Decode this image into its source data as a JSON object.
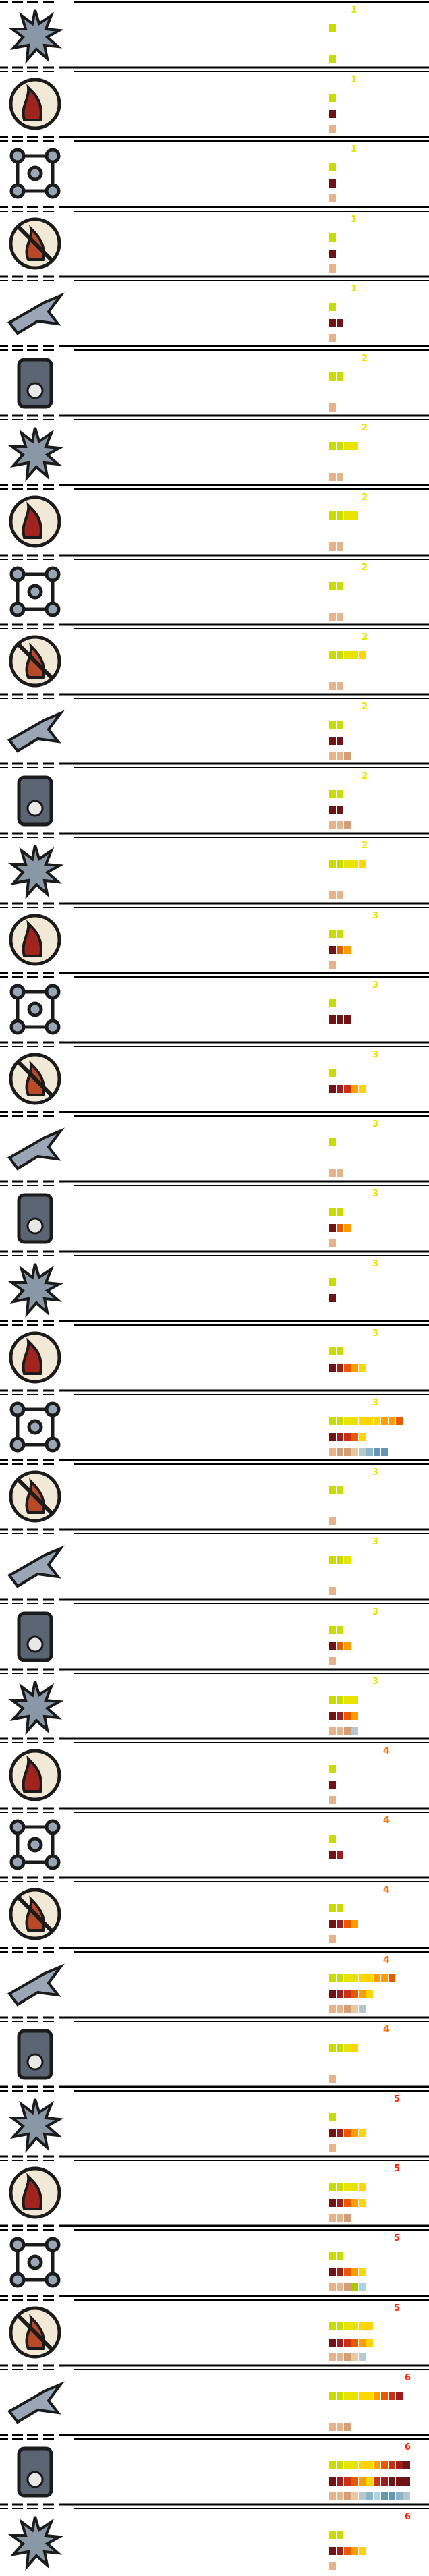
{
  "colors": {
    "line": "#000000",
    "level": {
      "1": "#e6e600",
      "2": "#e6e600",
      "3": "#e6e600",
      "4": "#ff6a00",
      "5": "#ff2200",
      "6": "#ff2200"
    },
    "palette": [
      "#a8c800",
      "#c8dc00",
      "#e8e400",
      "#ffd400",
      "#ff9c00",
      "#e85a00",
      "#c83214",
      "#9c1e1e",
      "#6e1414",
      "#e6b48c",
      "#d2a078",
      "#e8c8a0",
      "#b4c8d2",
      "#8cb4c8",
      "#6496b4",
      "#a8d4e8"
    ]
  },
  "rows": [
    {
      "name": "snowflake",
      "level": "1",
      "bars": [
        [
          0,
          0.5,
          0,
          0
        ]
      ],
      "r1": [
        1
      ],
      "r2": [],
      "r3": [
        1
      ]
    },
    {
      "name": "fire-hand",
      "level": "1",
      "r1": [
        1
      ],
      "r2": [
        8
      ],
      "r3": [
        9
      ]
    },
    {
      "name": "molecule",
      "level": "1",
      "r1": [
        1
      ],
      "r2": [
        8
      ],
      "r3": [
        9
      ]
    },
    {
      "name": "no-fire",
      "level": "1",
      "r1": [
        1
      ],
      "r2": [
        8
      ],
      "r3": [
        9
      ]
    },
    {
      "name": "swallow",
      "level": "1",
      "r1": [
        1
      ],
      "r2": [
        8,
        8
      ],
      "r3": [
        9
      ]
    },
    {
      "name": "skull-jar",
      "level": "2",
      "r1": [
        1,
        1
      ],
      "r2": [],
      "r3": [
        9
      ]
    },
    {
      "name": "wave-blue",
      "level": "2",
      "r1": [
        1,
        1,
        2,
        2
      ],
      "r2": [],
      "r3": [
        9,
        9
      ]
    },
    {
      "name": "wave-battery",
      "level": "2",
      "r1": [
        1,
        1,
        2,
        2
      ],
      "r2": [],
      "r3": [
        9,
        9
      ]
    },
    {
      "name": "wave-moon",
      "level": "2",
      "r1": [
        1,
        1
      ],
      "r2": [],
      "r3": [
        9,
        9
      ]
    },
    {
      "name": "wave-green",
      "level": "2",
      "r1": [
        1,
        1,
        2,
        2,
        3
      ],
      "r2": [],
      "r3": [
        9,
        9
      ]
    },
    {
      "name": "shield-cross",
      "level": "2",
      "r1": [
        1,
        1
      ],
      "r2": [
        8,
        8
      ],
      "r3": [
        9,
        9,
        10
      ]
    },
    {
      "name": "medic-circle",
      "level": "2",
      "r1": [
        1,
        1
      ],
      "r2": [
        8,
        8
      ],
      "r3": [
        9,
        9,
        10
      ]
    },
    {
      "name": "wave-heart",
      "level": "2",
      "r1": [
        1,
        1,
        2,
        2,
        3
      ],
      "r2": [],
      "r3": [
        9,
        9
      ]
    },
    {
      "name": "wolf-tag",
      "level": "3",
      "r1": [
        1,
        1
      ],
      "r2": [
        8,
        5,
        4
      ],
      "r3": [
        9
      ]
    },
    {
      "name": "weights",
      "level": "3",
      "r1": [
        1
      ],
      "r2": [
        8,
        8,
        8
      ],
      "r3": []
    },
    {
      "name": "stone-face",
      "level": "3",
      "r1": [
        1
      ],
      "r2": [
        8,
        7,
        6,
        4,
        3
      ],
      "r3": []
    },
    {
      "name": "broom",
      "level": "3",
      "r1": [
        1
      ],
      "r2": [],
      "r3": [
        9,
        9
      ]
    },
    {
      "name": "heat-waves",
      "level": "3",
      "r1": [
        1,
        1
      ],
      "r2": [
        8,
        5,
        4
      ],
      "r3": [
        9
      ]
    },
    {
      "name": "runner",
      "level": "3",
      "r1": [
        1
      ],
      "r2": [
        8
      ],
      "r3": []
    },
    {
      "name": "explosion",
      "level": "3",
      "r1": [
        1,
        1
      ],
      "r2": [
        8,
        7,
        5,
        4,
        3
      ],
      "r3": []
    },
    {
      "name": "dodge",
      "level": "3",
      "r1": [
        1,
        1,
        2,
        2,
        3,
        3,
        3,
        4,
        4,
        5
      ],
      "r2": [
        8,
        7,
        6,
        5,
        3
      ],
      "r3": [
        9,
        10,
        10,
        11,
        12,
        13,
        14,
        14
      ]
    },
    {
      "name": "vortex",
      "level": "3",
      "r1": [
        1,
        1
      ],
      "r2": [],
      "r3": [
        9
      ]
    },
    {
      "name": "fan",
      "level": "3",
      "r1": [
        1,
        1,
        2
      ],
      "r2": [],
      "r3": [
        9
      ]
    },
    {
      "name": "medic-dial",
      "level": "3",
      "r1": [
        1,
        1
      ],
      "r2": [
        8,
        5,
        4
      ],
      "r3": [
        9
      ]
    },
    {
      "name": "electric-hand",
      "level": "3",
      "r1": [
        1,
        1,
        2,
        2
      ],
      "r2": [
        8,
        7,
        5,
        4
      ],
      "r3": [
        9,
        9,
        10,
        12
      ]
    },
    {
      "name": "cog",
      "level": "4",
      "r1": [
        1
      ],
      "r2": [
        8
      ],
      "r3": [
        9
      ]
    },
    {
      "name": "spider",
      "level": "4",
      "r1": [
        1
      ],
      "r2": [
        8,
        7
      ],
      "r3": []
    },
    {
      "name": "umbrella",
      "level": "4",
      "r1": [
        1,
        1
      ],
      "r2": [
        8,
        7,
        5,
        4
      ],
      "r3": [
        9
      ]
    },
    {
      "name": "walker",
      "level": "4",
      "r1": [
        1,
        1,
        2,
        2,
        3,
        3,
        4,
        4,
        5
      ],
      "r2": [
        8,
        7,
        6,
        5,
        4,
        3
      ],
      "r3": [
        9,
        9,
        10,
        11,
        12
      ]
    },
    {
      "name": "shark",
      "level": "4",
      "r1": [
        1,
        1,
        2,
        3
      ],
      "r2": [],
      "r3": [
        9
      ]
    },
    {
      "name": "camo",
      "level": "5",
      "r1": [
        1
      ],
      "r2": [
        8,
        7,
        5,
        4,
        3
      ],
      "r3": [
        9
      ]
    },
    {
      "name": "fire-soldier",
      "level": "5",
      "r1": [
        1,
        1,
        2,
        2,
        3
      ],
      "r2": [
        8,
        7,
        5,
        4,
        3
      ],
      "r3": [
        9,
        9,
        10
      ]
    },
    {
      "name": "wrench",
      "level": "5",
      "r1": [
        1,
        1
      ],
      "r2": [
        8,
        7,
        5,
        4,
        3
      ],
      "r3": [
        9,
        9,
        10,
        0,
        15
      ]
    },
    {
      "name": "medic-plus",
      "level": "5",
      "r1": [
        1,
        1,
        2,
        2,
        3,
        3
      ],
      "r2": [
        8,
        7,
        6,
        5,
        4,
        3
      ],
      "r3": [
        9,
        9,
        10,
        11,
        12
      ]
    },
    {
      "name": "sprout",
      "level": "6",
      "r1": [
        1,
        1,
        2,
        2,
        3,
        3,
        4,
        5,
        6,
        7
      ],
      "r2": [],
      "r3": [
        9,
        9,
        10
      ]
    },
    {
      "name": "heart-hands",
      "level": "6",
      "r1": [
        1,
        1,
        2,
        2,
        3,
        3,
        4,
        5,
        6,
        7,
        8
      ],
      "r2": [
        8,
        7,
        6,
        5,
        4,
        3,
        6,
        7,
        8,
        8,
        8
      ],
      "r3": [
        9,
        9,
        10,
        11,
        12,
        13,
        15,
        14,
        14,
        13,
        12
      ]
    },
    {
      "name": "ghost",
      "level": "6",
      "r1": [
        1,
        1
      ],
      "r2": [
        8,
        7,
        5,
        4,
        3
      ],
      "r3": [
        9
      ]
    }
  ]
}
